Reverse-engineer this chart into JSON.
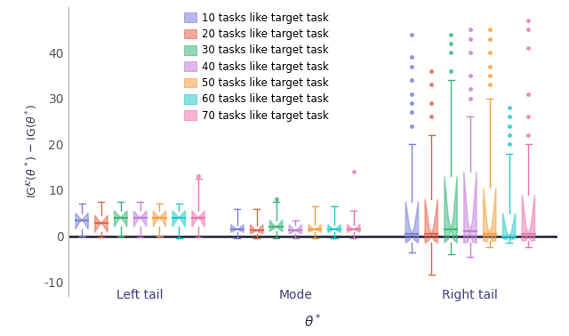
{
  "title": "",
  "xlabel": "$\\theta^*$",
  "ylabel": "IG$^{\\mathcal{K}}(\\theta^*) - $ IG$(\\theta^*)$",
  "groups": [
    "Left tail",
    "Mode",
    "Right tail"
  ],
  "n_tasks": [
    10,
    20,
    30,
    40,
    50,
    60,
    70
  ],
  "colors": [
    "#7B7FDB",
    "#E8634A",
    "#3BB87A",
    "#C47FDB",
    "#F5A040",
    "#25CACA",
    "#F075B0"
  ],
  "ylim": [
    -13,
    50
  ],
  "yticks": [
    -10,
    0,
    10,
    20,
    30,
    40
  ],
  "left_tail": {
    "whislo": [
      0.0,
      -0.3,
      0.0,
      -0.3,
      0.0,
      -0.5,
      -0.3
    ],
    "q1": [
      1.5,
      0.8,
      2.0,
      2.0,
      2.0,
      2.0,
      2.0
    ],
    "med": [
      3.5,
      2.8,
      4.0,
      4.0,
      4.0,
      4.0,
      4.0
    ],
    "q3": [
      5.0,
      4.5,
      5.5,
      5.5,
      5.5,
      5.5,
      5.5
    ],
    "whishi": [
      7.0,
      7.5,
      7.5,
      7.5,
      7.0,
      7.0,
      12.5
    ],
    "fliers_high": [
      [],
      [],
      [],
      [],
      [],
      [],
      [
        13.0
      ]
    ]
  },
  "mode": {
    "whislo": [
      -0.5,
      -0.5,
      -0.5,
      -0.5,
      -0.5,
      -0.5,
      -0.5
    ],
    "q1": [
      0.8,
      0.5,
      1.0,
      0.5,
      0.8,
      0.8,
      0.8
    ],
    "med": [
      1.5,
      1.2,
      2.0,
      1.2,
      1.5,
      1.5,
      1.5
    ],
    "q3": [
      2.5,
      2.5,
      3.5,
      2.5,
      2.5,
      2.5,
      2.5
    ],
    "whishi": [
      6.0,
      6.0,
      7.5,
      3.5,
      6.5,
      6.5,
      5.5
    ],
    "fliers_high": [
      [],
      [],
      [
        8.0
      ],
      [],
      [],
      [],
      [
        14.0
      ]
    ]
  },
  "right_tail": {
    "whislo": [
      -3.5,
      -8.5,
      -4.0,
      -4.5,
      -2.5,
      -1.5,
      -2.5
    ],
    "q1": [
      -1.5,
      -1.5,
      -1.5,
      -1.5,
      -1.0,
      -0.5,
      -1.0
    ],
    "med": [
      0.5,
      0.5,
      1.5,
      1.0,
      0.5,
      0.0,
      0.5
    ],
    "q3": [
      7.5,
      8.0,
      13.0,
      14.0,
      10.5,
      5.0,
      9.0
    ],
    "whishi": [
      20.0,
      22.0,
      34.0,
      26.0,
      30.0,
      18.0,
      20.0
    ],
    "fliers_high": [
      [
        24.0,
        27.0,
        29.0,
        31.0,
        34.0,
        37.0,
        39.0,
        44.0
      ],
      [
        26.0,
        29.0,
        33.0,
        36.0
      ],
      [
        36.0,
        40.0,
        42.0,
        44.0
      ],
      [
        30.0,
        32.0,
        35.0,
        40.0,
        43.0,
        45.0
      ],
      [
        33.0,
        35.0,
        37.0,
        40.0,
        43.0,
        45.0
      ],
      [
        20.0,
        22.0,
        24.0,
        26.0,
        28.0
      ],
      [
        22.0,
        26.0,
        31.0,
        41.0,
        45.0,
        47.0
      ]
    ]
  },
  "legend_labels": [
    "10 tasks like target task",
    "20 tasks like target task",
    "30 tasks like target task",
    "40 tasks like target task",
    "50 tasks like target task",
    "60 tasks like target task",
    "70 tasks like target task"
  ],
  "background_color": "#FFFFFF",
  "zero_line_color": "#1a1a2e",
  "group_label_fontsize": 10,
  "axis_label_fontsize": 11,
  "legend_fontsize": 8.5
}
